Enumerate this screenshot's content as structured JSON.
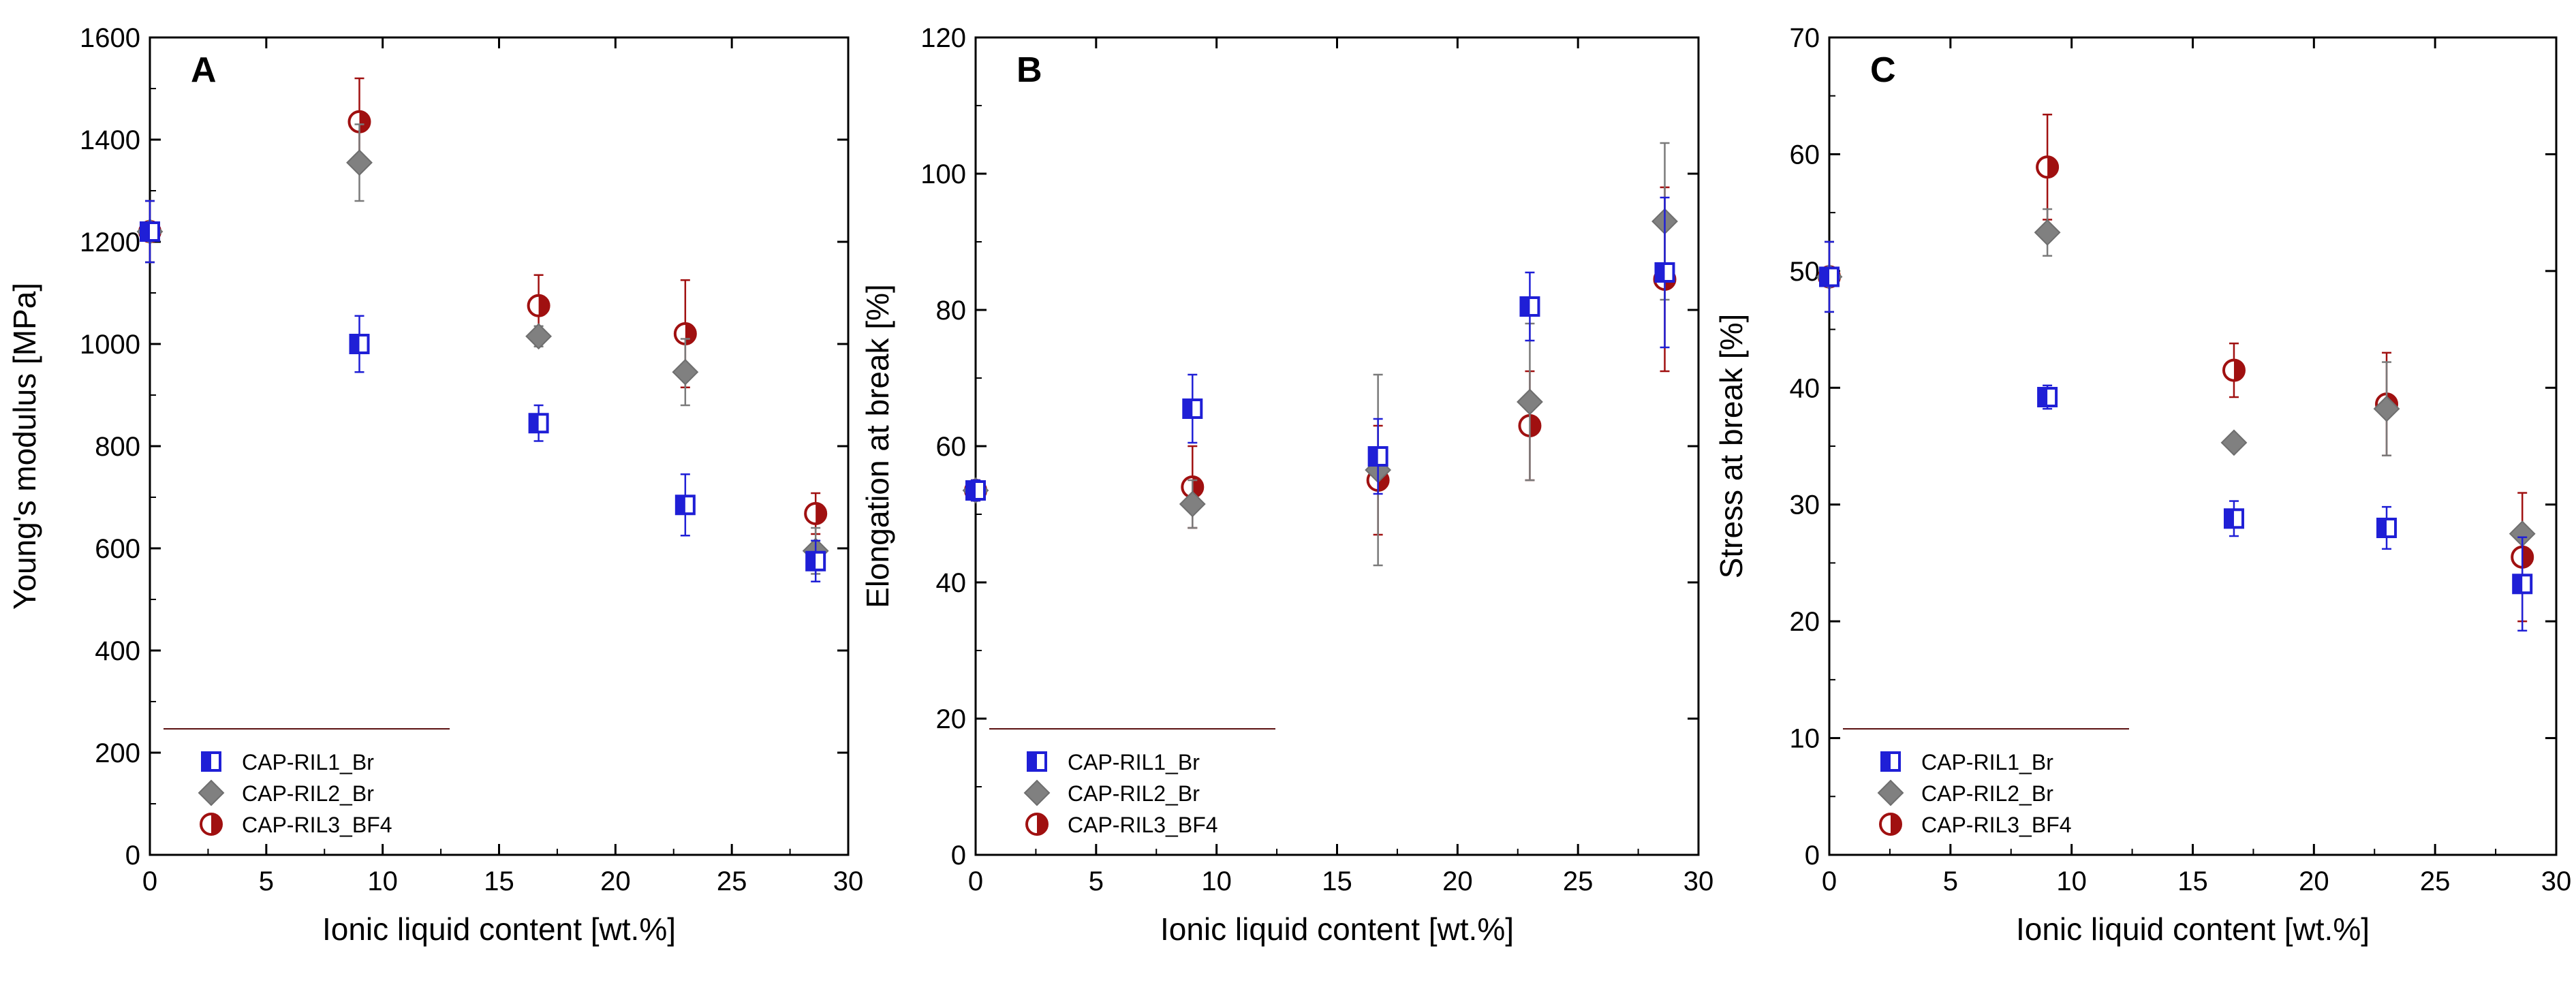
{
  "legend": {
    "series": [
      {
        "name": "CAP-RIL1_Br",
        "marker": "half-square",
        "color": "#1f1fd6"
      },
      {
        "name": "CAP-RIL2_Br",
        "marker": "diamond",
        "color": "#808080"
      },
      {
        "name": "CAP-RIL3_BF4",
        "marker": "half-circle",
        "color": "#a01010"
      }
    ]
  },
  "chart_data": [
    {
      "type": "scatter",
      "panel_label": "A",
      "xlabel": "Ionic liquid content [wt.%]",
      "ylabel": "Young's modulus [MPa]",
      "xlim": [
        0,
        30
      ],
      "ylim": [
        0,
        1600
      ],
      "xticks": [
        "0",
        "5",
        "10",
        "15",
        "20",
        "25",
        "30"
      ],
      "yticks": [
        "0",
        "200",
        "400",
        "600",
        "800",
        "1000",
        "1200",
        "1400",
        "1600"
      ],
      "legend_position": "bottom-left",
      "series": [
        {
          "name": "CAP-RIL1_Br",
          "points": [
            {
              "x": 0,
              "y": 1220,
              "err": 60
            },
            {
              "x": 9,
              "y": 1000,
              "err": 55
            },
            {
              "x": 16.7,
              "y": 845,
              "err": 35
            },
            {
              "x": 23,
              "y": 685,
              "err": 60
            },
            {
              "x": 28.6,
              "y": 575,
              "err": 40
            }
          ]
        },
        {
          "name": "CAP-RIL2_Br",
          "points": [
            {
              "x": 0,
              "y": 1220,
              "err": 60
            },
            {
              "x": 9,
              "y": 1355,
              "err": 75
            },
            {
              "x": 16.7,
              "y": 1015,
              "err": 20
            },
            {
              "x": 23,
              "y": 945,
              "err": 65
            },
            {
              "x": 28.6,
              "y": 595,
              "err": 45
            }
          ]
        },
        {
          "name": "CAP-RIL3_BF4",
          "points": [
            {
              "x": 0,
              "y": 1220,
              "err": 60
            },
            {
              "x": 9,
              "y": 1435,
              "err": 85
            },
            {
              "x": 16.7,
              "y": 1075,
              "err": 60
            },
            {
              "x": 23,
              "y": 1020,
              "err": 105
            },
            {
              "x": 28.6,
              "y": 668,
              "err": 40
            }
          ]
        }
      ]
    },
    {
      "type": "scatter",
      "panel_label": "B",
      "xlabel": "Ionic liquid content [wt.%]",
      "ylabel": "Elongation at break [%]",
      "xlim": [
        0,
        30
      ],
      "ylim": [
        0,
        120
      ],
      "xticks": [
        "0",
        "5",
        "10",
        "15",
        "20",
        "25",
        "30"
      ],
      "yticks": [
        "0",
        "20",
        "40",
        "60",
        "80",
        "100",
        "120"
      ],
      "legend_position": "bottom-left",
      "series": [
        {
          "name": "CAP-RIL1_Br",
          "points": [
            {
              "x": 0,
              "y": 53.5,
              "err": 1.5
            },
            {
              "x": 9,
              "y": 65.5,
              "err": 5
            },
            {
              "x": 16.7,
              "y": 58.5,
              "err": 5.5
            },
            {
              "x": 23,
              "y": 80.5,
              "err": 5
            },
            {
              "x": 28.6,
              "y": 85.5,
              "err": 11
            }
          ]
        },
        {
          "name": "CAP-RIL2_Br",
          "points": [
            {
              "x": 0,
              "y": 53.5,
              "err": 1.5
            },
            {
              "x": 9,
              "y": 51.5,
              "err": 3.5
            },
            {
              "x": 16.7,
              "y": 56.5,
              "err": 14
            },
            {
              "x": 23,
              "y": 66.5,
              "err": 11.5
            },
            {
              "x": 28.6,
              "y": 93,
              "err": 11.5
            }
          ]
        },
        {
          "name": "CAP-RIL3_BF4",
          "points": [
            {
              "x": 0,
              "y": 53.5,
              "err": 1.5
            },
            {
              "x": 9,
              "y": 54,
              "err": 6
            },
            {
              "x": 16.7,
              "y": 55,
              "err": 8
            },
            {
              "x": 23,
              "y": 63,
              "err": 8
            },
            {
              "x": 28.6,
              "y": 84.5,
              "err": 13.5
            }
          ]
        }
      ]
    },
    {
      "type": "scatter",
      "panel_label": "C",
      "xlabel": "Ionic liquid content [wt.%]",
      "ylabel": "Stress at break [%]",
      "xlim": [
        0,
        30
      ],
      "ylim": [
        0,
        70
      ],
      "xticks": [
        "0",
        "5",
        "10",
        "15",
        "20",
        "25",
        "30"
      ],
      "yticks": [
        "0",
        "10",
        "20",
        "30",
        "40",
        "50",
        "60",
        "70"
      ],
      "legend_position": "bottom-left",
      "series": [
        {
          "name": "CAP-RIL1_Br",
          "points": [
            {
              "x": 0,
              "y": 49.5,
              "err": 3
            },
            {
              "x": 9,
              "y": 39.2,
              "err": 1
            },
            {
              "x": 16.7,
              "y": 28.8,
              "err": 1.5
            },
            {
              "x": 23,
              "y": 28,
              "err": 1.8
            },
            {
              "x": 28.6,
              "y": 23.2,
              "err": 4
            }
          ]
        },
        {
          "name": "CAP-RIL2_Br",
          "points": [
            {
              "x": 0,
              "y": 49.5,
              "err": 3
            },
            {
              "x": 9,
              "y": 53.3,
              "err": 2
            },
            {
              "x": 16.7,
              "y": 35.3,
              "err": 0.5
            },
            {
              "x": 23,
              "y": 38.2,
              "err": 4
            },
            {
              "x": 28.6,
              "y": 27.5,
              "err": 0.5
            }
          ]
        },
        {
          "name": "CAP-RIL3_BF4",
          "points": [
            {
              "x": 0,
              "y": 49.5,
              "err": 3
            },
            {
              "x": 9,
              "y": 58.9,
              "err": 4.5
            },
            {
              "x": 16.7,
              "y": 41.5,
              "err": 2.3
            },
            {
              "x": 23,
              "y": 38.6,
              "err": 4.4
            },
            {
              "x": 28.6,
              "y": 25.5,
              "err": 5.5
            }
          ]
        }
      ]
    }
  ]
}
